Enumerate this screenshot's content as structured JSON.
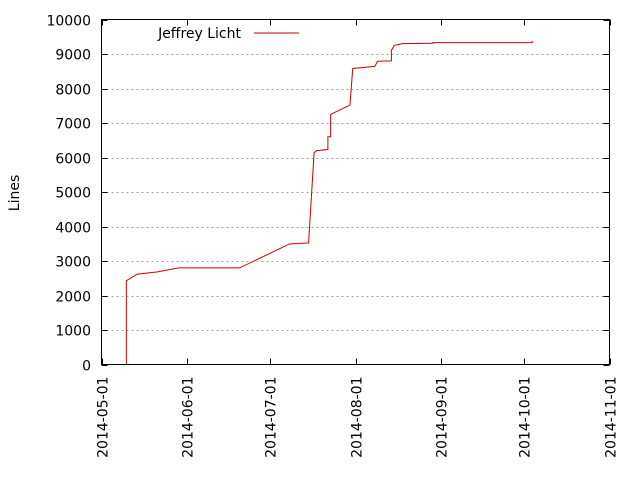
{
  "chart_data": {
    "type": "line",
    "title": "",
    "xlabel": "",
    "ylabel": "Lines",
    "ylim": [
      0,
      10000
    ],
    "xlim": [
      "2014-05-01",
      "2014-11-01"
    ],
    "y_ticks": [
      0,
      1000,
      2000,
      3000,
      4000,
      5000,
      6000,
      7000,
      8000,
      9000,
      10000
    ],
    "x_ticks": [
      "2014-05-01",
      "2014-06-01",
      "2014-07-01",
      "2014-08-01",
      "2014-09-01",
      "2014-10-01",
      "2014-11-01"
    ],
    "grid": true,
    "legend_position": "top-left",
    "series": [
      {
        "name": "Jeffrey Licht",
        "color": "#cc0000",
        "points": [
          [
            "2014-05-10",
            0
          ],
          [
            "2014-05-10",
            2430
          ],
          [
            "2014-05-14",
            2620
          ],
          [
            "2014-05-21",
            2680
          ],
          [
            "2014-05-29",
            2800
          ],
          [
            "2014-06-20",
            2800
          ],
          [
            "2014-07-08",
            3490
          ],
          [
            "2014-07-11",
            3510
          ],
          [
            "2014-07-15",
            3520
          ],
          [
            "2014-07-17",
            6140
          ],
          [
            "2014-07-18",
            6200
          ],
          [
            "2014-07-22",
            6230
          ],
          [
            "2014-07-22",
            6600
          ],
          [
            "2014-07-23",
            6600
          ],
          [
            "2014-07-23",
            7250
          ],
          [
            "2014-07-30",
            7520
          ],
          [
            "2014-07-31",
            8580
          ],
          [
            "2014-08-08",
            8640
          ],
          [
            "2014-08-09",
            8790
          ],
          [
            "2014-08-14",
            8800
          ],
          [
            "2014-08-14",
            9100
          ],
          [
            "2014-08-15",
            9250
          ],
          [
            "2014-08-18",
            9300
          ],
          [
            "2014-08-29",
            9310
          ],
          [
            "2014-08-29",
            9330
          ],
          [
            "2014-10-04",
            9330
          ],
          [
            "2014-10-04",
            9380
          ]
        ]
      }
    ]
  }
}
